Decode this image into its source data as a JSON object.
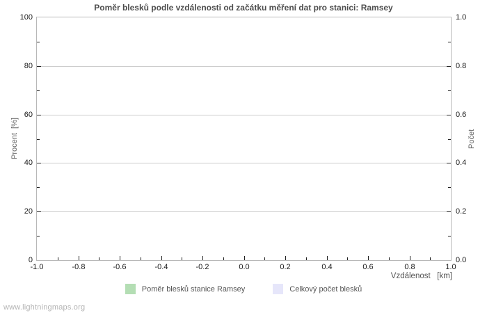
{
  "page": {
    "watermark": "www.lightningmaps.org"
  },
  "chart_data": {
    "type": "bar",
    "title": "Poměr blesků podle vzdálenosti od začátku měření dat pro stanici: Ramsey",
    "xlabel": "Vzdálenost   [km]",
    "ylabel_left": "Procent  [%]",
    "ylabel_right": "Počet",
    "xlim": [
      -1.0,
      1.0
    ],
    "x_tick_labels": [
      "-1.0",
      "-0.8",
      "-0.6",
      "-0.4",
      "-0.2",
      "0.0",
      "0.2",
      "0.4",
      "0.6",
      "0.8",
      "1.0"
    ],
    "ylim_left": [
      0,
      100
    ],
    "y_left_tick_labels": [
      "0",
      "20",
      "40",
      "60",
      "80",
      "100"
    ],
    "ylim_right": [
      0.0,
      1.0
    ],
    "y_right_tick_labels": [
      "0.0",
      "0.2",
      "0.4",
      "0.6",
      "0.8",
      "1.0"
    ],
    "grid": "horizontal-only",
    "legend_position": "bottom-center",
    "series": [
      {
        "name": "Poměr blesků stanice Ramsey",
        "color": "#b4deb4",
        "values": []
      },
      {
        "name": "Celkový počet blesků",
        "color": "#e6e6fa",
        "values": []
      }
    ],
    "colors": {
      "frame": "#b8b8b8",
      "gridline": "#cccccc",
      "tick": "#222222",
      "title_text": "#4d4d4d",
      "axis_text": "#1a1a1a",
      "muted_text": "#555555",
      "watermark_text": "#b3b3b3"
    }
  }
}
